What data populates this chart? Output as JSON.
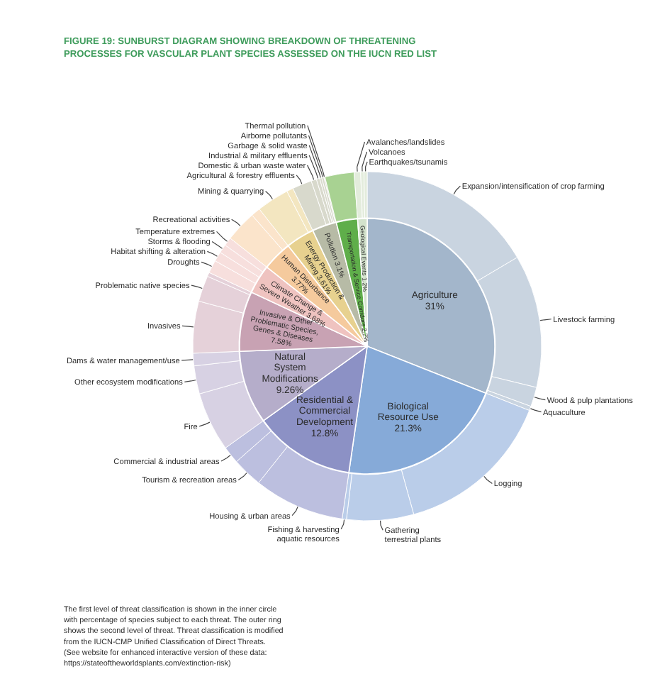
{
  "chart_data": [
    {
      "type": "pie",
      "title": "FIGURE 19: SUNBURST DIAGRAM SHOWING BREAKDOWN OF THREATENING PROCESSES FOR VASCULAR PLANT SPECIES ASSESSED ON THE IUCN RED LIST",
      "categories": [
        "Agriculture",
        "Biological Resource Use",
        "Residential & Commercial Development",
        "Natural System Modifications",
        "Invasive & Other Problematic Species, Genes & Diseases",
        "Climate Change & Severe Weather",
        "Human Disturbance",
        "Energy Production & Mining",
        "Pollution",
        "Transportation & Service Corridors",
        "Geological Events"
      ],
      "values": [
        31,
        21.3,
        12.8,
        9.26,
        7.58,
        3.68,
        3.77,
        3.61,
        3.1,
        2.7,
        1.2
      ],
      "value_labels": [
        "31%",
        "21.3%",
        "12.8%",
        "9.26%",
        "7.58%",
        "3.68%",
        "3.77%",
        "3.61%",
        "3.1%",
        "2.7%",
        "1.2%"
      ],
      "colors": [
        "#a3b6cb",
        "#86aad8",
        "#8c91c5",
        "#b5adca",
        "#c8a2b3",
        "#efc3c0",
        "#f5ca9d",
        "#e7d18f",
        "#b7bba6",
        "#5fae4a",
        "#d3e3cc"
      ],
      "annotations": [
        "The first level of threat classification is shown in the inner circle with percentage of species subject to each threat. The outer ring shows the second level of threat. Threat classification is modified from the IUCN-CMP Unified Classification of Direct Threats.",
        "(See website for enhanced interactive version of these data: https://stateoftheworldsplants.com/extinction-risk)"
      ]
    },
    {
      "type": "donut",
      "categories": [
        "Expansion/intensification of crop farming",
        "Livestock farming",
        "Wood & pulp plantations",
        "Aquaculture",
        "Logging",
        "Gathering terrestrial plants",
        "Fishing & harvesting aquatic resources",
        "Housing & urban areas",
        "Tourism & recreation areas",
        "Commercial & industrial areas",
        "Fire",
        "Other ecosystem modifications",
        "Dams & water management/use",
        "Invasives",
        "Problematic native species",
        null,
        "Droughts",
        "Habitat shifting & alteration",
        "Storms & flooding",
        "Temperature extremes",
        "Recreational activities",
        null,
        "Mining & quarrying",
        null,
        "Agricultural & forestry effluents",
        "Domestic & urban waste water",
        "Industrial & military effluents",
        "Garbage & solid waste",
        "Airborne pollutants",
        "Thermal pollution",
        null,
        "Avalanches/landslides",
        "Volcanoes",
        "Earthquakes/tsunamis"
      ],
      "values": [
        16.5,
        12.3,
        1.8,
        0.4,
        14.7,
        6.2,
        0.4,
        8.4,
        2.8,
        1.6,
        5.5,
        2.6,
        1.16,
        4.8,
        2.4,
        0.38,
        1.2,
        0.9,
        0.8,
        0.78,
        2.9,
        0.87,
        3.0,
        0.61,
        1.8,
        0.5,
        0.3,
        0.2,
        0.2,
        0.1,
        2.7,
        0.6,
        0.3,
        0.3
      ],
      "colors": [
        "#c9d4e0",
        "#c9d4e0",
        "#c9d4e0",
        "#c9d4e0",
        "#bacde9",
        "#bacde9",
        "#bacde9",
        "#bcbfdf",
        "#bcbfdf",
        "#bcbfdf",
        "#d7d1e3",
        "#d7d1e3",
        "#d7d1e3",
        "#e5d1d9",
        "#e5d1d9",
        "#e5d1d9",
        "#f7dfdd",
        "#f7dfdd",
        "#f7dfdd",
        "#f7dfdd",
        "#fbe4cb",
        "#fbe4cb",
        "#f3e6c0",
        "#f3e6c0",
        "#d8d9cc",
        "#d8d9cc",
        "#d8d9cc",
        "#d8d9cc",
        "#d8d9cc",
        "#d8d9cc",
        "#a8d292",
        "#e3ecdc",
        "#e3ecdc",
        "#e3ecdc"
      ]
    }
  ]
}
